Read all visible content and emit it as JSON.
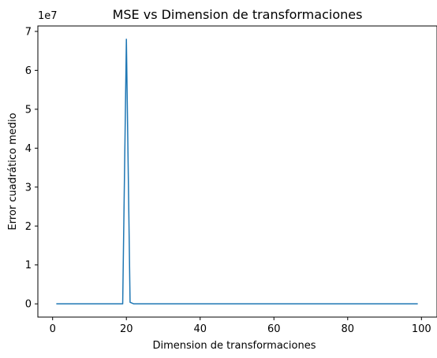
{
  "chart_data": {
    "type": "line",
    "title": "MSE vs Dimension de transformaciones",
    "xlabel": "Dimension de transformaciones",
    "ylabel": "Error cuadrático medio",
    "offset_label": "1e7",
    "xlim": [
      -4,
      104
    ],
    "ylim": [
      -3400000,
      71400000
    ],
    "xticks": [
      0,
      20,
      40,
      60,
      80,
      100
    ],
    "yticks": [
      0,
      10000000,
      20000000,
      30000000,
      40000000,
      50000000,
      60000000,
      70000000
    ],
    "ytick_labels": [
      "0",
      "1",
      "2",
      "3",
      "4",
      "5",
      "6",
      "7"
    ],
    "grid": false,
    "series": [
      {
        "color": "#1f77b4",
        "points": [
          [
            1,
            0
          ],
          [
            19,
            0
          ],
          [
            20,
            68000000
          ],
          [
            21,
            400000
          ],
          [
            22,
            0
          ],
          [
            99,
            0
          ]
        ]
      }
    ]
  }
}
